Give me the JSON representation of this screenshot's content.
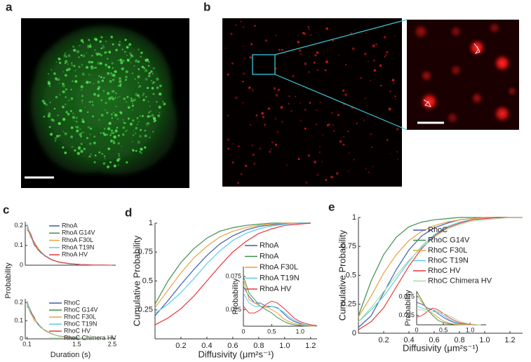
{
  "panel_labels": [
    "a",
    "b",
    "c",
    "d",
    "e"
  ],
  "chart_data": [
    {
      "type": "line",
      "ylabel": "Probability",
      "x": [
        0.1,
        0.2,
        0.3,
        0.4,
        0.5,
        0.6,
        0.8,
        1.0,
        1.3,
        1.6,
        2.0,
        2.5
      ],
      "xlim": [
        0.05,
        2.6
      ],
      "ylim": [
        0,
        0.22
      ],
      "yticks": [
        0,
        0.1,
        0.2
      ],
      "series": [
        {
          "name": "RhoA",
          "color": "#3b5bb5",
          "values": [
            0.2,
            0.15,
            0.11,
            0.085,
            0.064,
            0.048,
            0.027,
            0.015,
            0.007,
            0.003,
            0.001,
            0
          ]
        },
        {
          "name": "RhoA G14V",
          "color": "#3f8f4f",
          "values": [
            0.19,
            0.16,
            0.11,
            0.08,
            0.06,
            0.05,
            0.028,
            0.016,
            0.008,
            0.003,
            0.001,
            0
          ]
        },
        {
          "name": "RhoA F30L",
          "color": "#e8a33c",
          "values": [
            0.2,
            0.14,
            0.12,
            0.09,
            0.065,
            0.046,
            0.026,
            0.014,
            0.006,
            0.003,
            0.001,
            0
          ]
        },
        {
          "name": "RhoA T19N",
          "color": "#5fcbe6",
          "values": [
            0.21,
            0.15,
            0.1,
            0.085,
            0.062,
            0.049,
            0.029,
            0.015,
            0.007,
            0.002,
            0.001,
            0
          ]
        },
        {
          "name": "RhoA HV",
          "color": "#e8363c",
          "values": [
            0.18,
            0.16,
            0.11,
            0.08,
            0.066,
            0.047,
            0.027,
            0.016,
            0.008,
            0.004,
            0.001,
            0
          ]
        }
      ]
    },
    {
      "type": "line",
      "xlabel": "Duration (s)",
      "x": [
        0.1,
        0.2,
        0.3,
        0.4,
        0.5,
        0.6,
        0.8,
        1.0,
        1.3,
        1.6,
        2.0,
        2.5
      ],
      "xlim": [
        0.05,
        2.6
      ],
      "xticks": [
        0.1,
        1.5,
        2.5
      ],
      "ylim": [
        0,
        0.22
      ],
      "yticks": [
        0,
        0.1,
        0.2
      ],
      "series": [
        {
          "name": "RhoC",
          "color": "#3b5bb5",
          "values": [
            0.2,
            0.14,
            0.11,
            0.085,
            0.063,
            0.048,
            0.027,
            0.015,
            0.007,
            0.003,
            0.001,
            0
          ]
        },
        {
          "name": "RhoC G14V",
          "color": "#3f8f4f",
          "values": [
            0.19,
            0.15,
            0.12,
            0.08,
            0.06,
            0.05,
            0.028,
            0.014,
            0.006,
            0.003,
            0.001,
            0
          ]
        },
        {
          "name": "RhoC F30L",
          "color": "#e8a33c",
          "values": [
            0.21,
            0.15,
            0.1,
            0.088,
            0.065,
            0.046,
            0.026,
            0.016,
            0.008,
            0.003,
            0.001,
            0
          ]
        },
        {
          "name": "RhoC T19N",
          "color": "#5fcbe6",
          "values": [
            0.2,
            0.16,
            0.11,
            0.082,
            0.062,
            0.049,
            0.029,
            0.015,
            0.007,
            0.002,
            0.001,
            0
          ]
        },
        {
          "name": "RhoC HV",
          "color": "#e8363c",
          "values": [
            0.18,
            0.15,
            0.115,
            0.085,
            0.066,
            0.047,
            0.027,
            0.016,
            0.008,
            0.004,
            0.001,
            0
          ]
        },
        {
          "name": "RhoC Chimera HV",
          "color": "#a8dca0",
          "values": [
            0.19,
            0.14,
            0.11,
            0.09,
            0.064,
            0.05,
            0.028,
            0.015,
            0.007,
            0.003,
            0.001,
            0
          ]
        }
      ]
    },
    {
      "type": "line",
      "xlabel": "Diffusivity (μm²s⁻¹)",
      "ylabel": "Cumulative Probability",
      "x": [
        0,
        0.1,
        0.2,
        0.3,
        0.4,
        0.5,
        0.6,
        0.7,
        0.8,
        0.9,
        1.0,
        1.1,
        1.2
      ],
      "xlim": [
        0,
        1.25
      ],
      "xticks": [
        0.2,
        0.4,
        0.6,
        0.8,
        {
          "value": 1,
          "label": "1.0"
        },
        1.2
      ],
      "ylim": [
        0,
        1
      ],
      "yticks": [
        0.25,
        0.5,
        0.75,
        1
      ],
      "series": [
        {
          "name": "RhoA",
          "color": "#3b5bb5",
          "values": [
            0.2,
            0.33,
            0.47,
            0.6,
            0.72,
            0.82,
            0.89,
            0.94,
            0.97,
            0.985,
            0.995,
            1,
            1
          ]
        },
        {
          "name": "RhoA",
          "color": "#3f8f4f",
          "values": [
            0.3,
            0.5,
            0.66,
            0.78,
            0.87,
            0.93,
            0.96,
            0.98,
            0.99,
            1,
            1,
            1,
            1
          ]
        },
        {
          "name": "RhoA F30L",
          "color": "#e8a33c",
          "values": [
            0.27,
            0.42,
            0.57,
            0.7,
            0.8,
            0.88,
            0.93,
            0.96,
            0.98,
            0.99,
            1,
            1,
            1
          ]
        },
        {
          "name": "RhoA T19N",
          "color": "#5fcbe6",
          "values": [
            0.22,
            0.3,
            0.4,
            0.52,
            0.65,
            0.76,
            0.85,
            0.91,
            0.95,
            0.975,
            0.99,
            1,
            1
          ]
        },
        {
          "name": "RhoA HV",
          "color": "#e8363c",
          "values": [
            0.12,
            0.18,
            0.26,
            0.37,
            0.5,
            0.63,
            0.75,
            0.84,
            0.91,
            0.95,
            0.98,
            0.99,
            1
          ]
        }
      ]
    },
    {
      "type": "line",
      "ylabel": "Probability",
      "x": [
        0,
        0.1,
        0.2,
        0.3,
        0.4,
        0.5,
        0.6,
        0.7,
        0.8,
        0.9,
        1.0,
        1.1,
        1.2,
        1.3
      ],
      "xlim": [
        0,
        1.3
      ],
      "xticks": [
        0,
        0.5,
        {
          "value": 1,
          "label": "1.0"
        }
      ],
      "ylim": [
        0,
        0.09
      ],
      "yticks": [
        0.025,
        0.075
      ],
      "series": [
        {
          "color": "#3b5bb5",
          "values": [
            0.06,
            0.045,
            0.035,
            0.035,
            0.03,
            0.03,
            0.028,
            0.02,
            0.012,
            0.007,
            0.004,
            0.002,
            0.001,
            0
          ]
        },
        {
          "color": "#3f8f4f",
          "values": [
            0.075,
            0.05,
            0.04,
            0.03,
            0.025,
            0.02,
            0.013,
            0.008,
            0.004,
            0.002,
            0.001,
            0,
            0,
            0
          ]
        },
        {
          "color": "#e8a33c",
          "values": [
            0.07,
            0.04,
            0.035,
            0.03,
            0.03,
            0.025,
            0.02,
            0.012,
            0.007,
            0.004,
            0.002,
            0.001,
            0,
            0
          ]
        },
        {
          "color": "#5fcbe6",
          "values": [
            0.05,
            0.035,
            0.03,
            0.03,
            0.028,
            0.03,
            0.027,
            0.022,
            0.015,
            0.009,
            0.005,
            0.002,
            0.001,
            0
          ]
        },
        {
          "color": "#e8363c",
          "values": [
            0.03,
            0.02,
            0.02,
            0.025,
            0.033,
            0.038,
            0.035,
            0.028,
            0.02,
            0.012,
            0.007,
            0.004,
            0.002,
            0.001
          ]
        }
      ]
    },
    {
      "type": "line",
      "xlabel": "Diffusivity (μm²s⁻¹)",
      "ylabel": "Cumulative Probability",
      "x": [
        0,
        0.1,
        0.2,
        0.3,
        0.4,
        0.5,
        0.6,
        0.7,
        0.8,
        0.9,
        1.0,
        1.1,
        1.2,
        1.3
      ],
      "xlim": [
        0,
        1.3
      ],
      "xticks": [
        0.2,
        0.4,
        0.6,
        0.8,
        {
          "value": 1,
          "label": "1.0"
        },
        1.2
      ],
      "ylim": [
        0,
        1
      ],
      "yticks": [
        0,
        0.25,
        0.5,
        0.75,
        1
      ],
      "series": [
        {
          "name": "RhoC",
          "color": "#3b5bb5",
          "values": [
            0.05,
            0.15,
            0.35,
            0.55,
            0.72,
            0.84,
            0.91,
            0.95,
            0.98,
            0.99,
            1,
            1,
            1,
            1
          ]
        },
        {
          "name": "RhoC G14V",
          "color": "#3f8f4f",
          "values": [
            0.15,
            0.45,
            0.68,
            0.83,
            0.92,
            0.96,
            0.98,
            0.99,
            1,
            1,
            1,
            1,
            1,
            1
          ]
        },
        {
          "name": "RhoC F30L",
          "color": "#e8a33c",
          "values": [
            0.14,
            0.32,
            0.52,
            0.68,
            0.8,
            0.88,
            0.93,
            0.96,
            0.98,
            0.99,
            1,
            1,
            1,
            1
          ]
        },
        {
          "name": "RhoC T19N",
          "color": "#5fcbe6",
          "values": [
            0.1,
            0.2,
            0.32,
            0.47,
            0.62,
            0.75,
            0.85,
            0.92,
            0.96,
            0.98,
            0.99,
            1,
            1,
            1
          ]
        },
        {
          "name": "RhoC HV",
          "color": "#e8363c",
          "values": [
            0.03,
            0.1,
            0.22,
            0.4,
            0.58,
            0.73,
            0.84,
            0.91,
            0.95,
            0.98,
            0.99,
            1,
            1,
            1
          ]
        },
        {
          "name": "RhoC Chimera HV",
          "color": "#a8dca0",
          "values": [
            0.1,
            0.22,
            0.36,
            0.5,
            0.63,
            0.74,
            0.83,
            0.9,
            0.94,
            0.97,
            0.98,
            0.99,
            1,
            1
          ]
        }
      ]
    },
    {
      "type": "line",
      "ylabel": "Probability",
      "x": [
        0,
        0.1,
        0.2,
        0.3,
        0.4,
        0.5,
        0.6,
        0.7,
        0.8,
        0.9,
        1.0,
        1.1,
        1.2
      ],
      "xlim": [
        0,
        1.3
      ],
      "xticks": [
        0,
        0.5,
        {
          "value": 1,
          "label": "1.0"
        }
      ],
      "ylim": [
        0,
        0.09
      ],
      "yticks": [
        0.025,
        0.075
      ],
      "series": [
        {
          "color": "#3b5bb5",
          "values": [
            0.06,
            0.055,
            0.045,
            0.04,
            0.03,
            0.02,
            0.012,
            0.006,
            0.003,
            0.001,
            0,
            0,
            0
          ]
        },
        {
          "color": "#3f8f4f",
          "values": [
            0.09,
            0.065,
            0.04,
            0.025,
            0.012,
            0.006,
            0.003,
            0.001,
            0,
            0,
            0,
            0,
            0
          ]
        },
        {
          "color": "#e8a33c",
          "values": [
            0.08,
            0.06,
            0.04,
            0.03,
            0.02,
            0.01,
            0.005,
            0.002,
            0.001,
            0,
            0,
            0,
            0
          ]
        },
        {
          "color": "#5fcbe6",
          "values": [
            0.05,
            0.045,
            0.04,
            0.04,
            0.035,
            0.025,
            0.015,
            0.008,
            0.004,
            0.002,
            0.001,
            0,
            0
          ]
        },
        {
          "color": "#e8363c",
          "values": [
            0.02,
            0.025,
            0.035,
            0.045,
            0.04,
            0.03,
            0.02,
            0.012,
            0.006,
            0.003,
            0.001,
            0,
            0
          ]
        },
        {
          "color": "#a8dca0",
          "values": [
            0.04,
            0.04,
            0.035,
            0.035,
            0.033,
            0.03,
            0.025,
            0.017,
            0.01,
            0.005,
            0.002,
            0.001,
            0
          ]
        }
      ]
    }
  ]
}
